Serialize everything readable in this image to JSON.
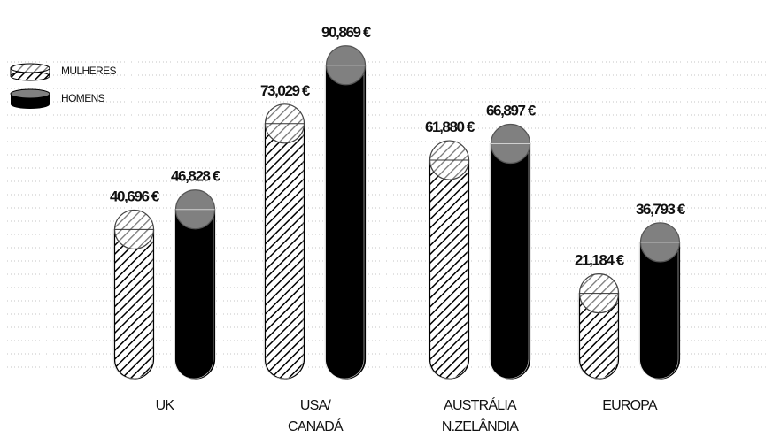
{
  "chart_data": {
    "type": "bar",
    "categories": [
      "UK",
      "USA/\nCANADÁ",
      "AUSTRÁLIA\nN.ZELÂNDIA",
      "EUROPA"
    ],
    "value_unit": "€",
    "series": [
      {
        "name": "MULHERES",
        "values": [
          40696,
          73029,
          61880,
          21184
        ],
        "labels": [
          "40,696 €",
          "73,029 €",
          "61,880 €",
          "21,184 €"
        ]
      },
      {
        "name": "HOMENS",
        "values": [
          46828,
          90869,
          66897,
          36793
        ],
        "labels": [
          "46,828 €",
          "90,869 €",
          "66,897 €",
          "36,793 €"
        ]
      }
    ],
    "ylim": [
      0,
      100000
    ],
    "grid": true,
    "legend_position": "top-left",
    "colors": {
      "mulheres_fill": "hatched",
      "homens_body": "#000000",
      "homens_cap": "#808080",
      "grid": "#bbbbbb"
    }
  }
}
